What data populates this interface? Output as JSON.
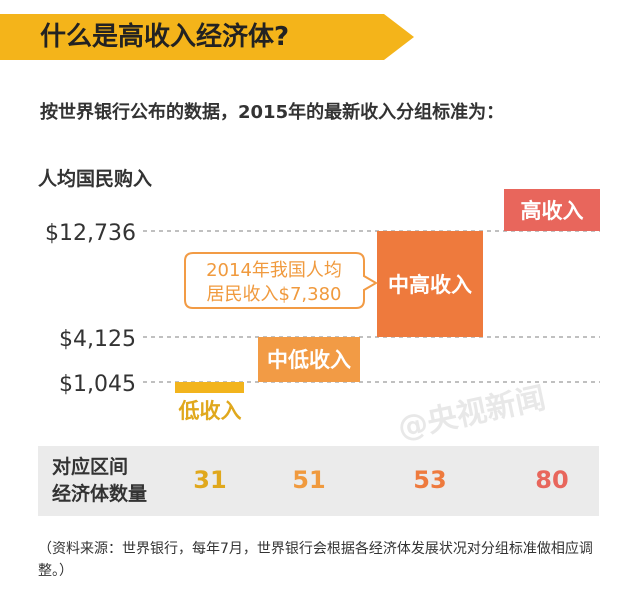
{
  "title": "什么是高收入经济体?",
  "intro": "按世界银行公布的数据，2015年的最新收入分组标准为：",
  "colors": {
    "banner": "#f4b41a",
    "low": "#f2b41d",
    "lower_middle": "#f29b45",
    "upper_middle": "#ee7a3d",
    "high": "#e8665c",
    "callout_border": "#f29b45",
    "low_text": "#e0a81d",
    "lower_middle_text": "#f09a3e",
    "upper_middle_text": "#ee7a3d",
    "high_text": "#e8665c"
  },
  "chart_data": {
    "type": "bar",
    "ylabel": "人均国民购入",
    "ytick_labels": [
      "$12,736",
      "$4,125",
      "$1,045"
    ],
    "thresholds": [
      12736,
      4125,
      1045
    ],
    "categories": [
      "低收入",
      "中低收入",
      "中高收入",
      "高收入"
    ],
    "ranges": [
      {
        "group": "低收入",
        "min": null,
        "max": 1045
      },
      {
        "group": "中低收入",
        "min": 1045,
        "max": 4125
      },
      {
        "group": "中高收入",
        "min": 4125,
        "max": 12736
      },
      {
        "group": "高收入",
        "min": 12736,
        "max": null
      }
    ],
    "annotation": {
      "line1": "2014年我国人均",
      "line2": "居民收入$7,380",
      "value": 7380
    },
    "table": {
      "label_line1": "对应区间",
      "label_line2": "经济体数量",
      "counts": [
        "31",
        "51",
        "53",
        "80"
      ]
    }
  },
  "watermark": "@央视新闻",
  "source": "（资料来源：世界银行，每年7月，世界银行会根据各经济体发展状况对分组标准做相应调整。）"
}
